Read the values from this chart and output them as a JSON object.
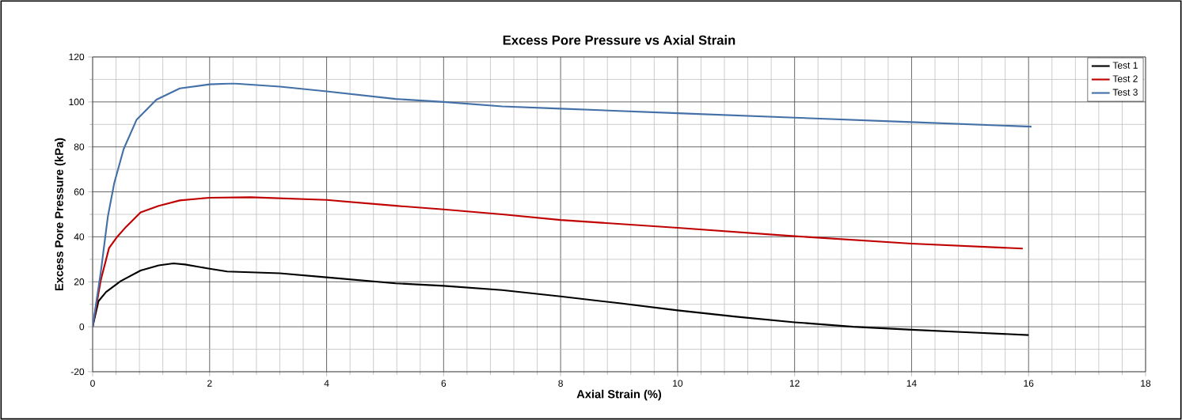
{
  "chart_data": {
    "type": "line",
    "title": "Excess Pore Pressure vs Axial Strain",
    "xlabel": "Axial Strain (%)",
    "ylabel": "Excess Pore Pressure (kPa)",
    "xlim": [
      0,
      18
    ],
    "ylim": [
      -20,
      120
    ],
    "xticks": [
      0,
      2,
      4,
      6,
      8,
      10,
      12,
      14,
      16,
      18
    ],
    "yticks": [
      -20,
      0,
      20,
      40,
      60,
      80,
      100,
      120
    ],
    "grid": true,
    "legend": "top right",
    "marker": "none",
    "line_style": "solid",
    "series": [
      {
        "name": "Test 1",
        "color": "#000000",
        "x": [
          0,
          0.1,
          0.23,
          0.48,
          0.82,
          1.13,
          1.38,
          1.58,
          2.0,
          2.3,
          3.2,
          4.0,
          5.18,
          6,
          7,
          8,
          9,
          10,
          11,
          12,
          13,
          14,
          15,
          16
        ],
        "values": [
          0,
          11.4,
          15.5,
          20.3,
          25,
          27.3,
          28.2,
          27.7,
          25.8,
          24.6,
          23.8,
          22,
          19.3,
          18.2,
          16.3,
          13.5,
          10.5,
          7.3,
          4.5,
          2,
          0,
          -1.3,
          -2.5,
          -3.7
        ]
      },
      {
        "name": "Test 2",
        "color": "#c00000",
        "x": [
          0,
          0.14,
          0.28,
          0.41,
          0.57,
          0.82,
          1.13,
          1.49,
          2.0,
          2.7,
          4.0,
          5.18,
          6,
          7,
          8,
          10,
          12,
          14,
          15.9
        ],
        "values": [
          0,
          20.8,
          35,
          39.7,
          44.4,
          50.9,
          53.8,
          56.2,
          57.4,
          57.6,
          56.4,
          53.8,
          52.2,
          50,
          47.5,
          44,
          40.3,
          37,
          34.8
        ]
      },
      {
        "name": "Test 3",
        "color": "#4470a8",
        "x": [
          0,
          0.14,
          0.26,
          0.37,
          0.53,
          0.75,
          1.09,
          1.49,
          2.0,
          2.4,
          3.2,
          4.0,
          5.18,
          6,
          7,
          8,
          10,
          12,
          14,
          16.05
        ],
        "values": [
          0,
          24.4,
          49,
          64,
          79,
          92,
          101,
          106,
          107.8,
          108.2,
          106.8,
          104.7,
          101.3,
          100,
          98,
          97,
          95,
          93,
          91,
          89
        ]
      }
    ]
  }
}
